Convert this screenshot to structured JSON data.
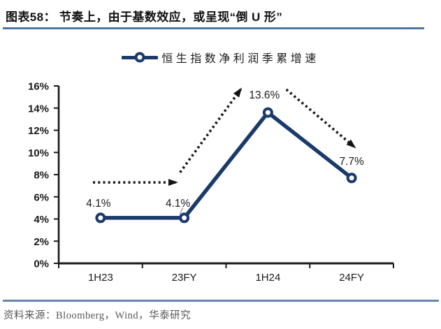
{
  "header": {
    "title": "图表58：  节奏上，由于基数效应，或呈现“倒 U 形”"
  },
  "legend": {
    "label": "恒生指数净利润季累增速"
  },
  "footer": {
    "source": "资料来源：Bloomberg，Wind，华泰研究"
  },
  "colors": {
    "series": "#1a3a6b",
    "axis": "#1a1a1a",
    "text": "#1a1a1a",
    "arrow": "#141414",
    "leader": "#a6a6a6",
    "title_rule": "#4f74a3",
    "footer_rule": "#6286ac",
    "source_text": "#595959"
  },
  "chart_data": {
    "type": "line",
    "title": "图表58：节奏上，由于基数效应，或呈现“倒U形”",
    "categories": [
      "1H23",
      "23FY",
      "1H24",
      "24FY"
    ],
    "series": [
      {
        "name": "恒生指数净利润季累增速",
        "values": [
          4.1,
          4.1,
          13.6,
          7.7
        ]
      }
    ],
    "data_labels": [
      "4.1%",
      "4.1%",
      "13.6%",
      "7.7%"
    ],
    "xlabel": "",
    "ylabel": "",
    "ylim": [
      0,
      16
    ],
    "ytick_step": 2,
    "ytick_labels": [
      "0%",
      "2%",
      "4%",
      "6%",
      "8%",
      "10%",
      "12%",
      "14%",
      "16%"
    ],
    "grid": false,
    "legend_position": "top",
    "annotations": [
      {
        "type": "dotted-arrow",
        "from": {
          "xi": 0.41,
          "y": 7.3
        },
        "to": {
          "xi": 1.41,
          "y": 7.3
        }
      },
      {
        "type": "dotted-arrow",
        "from": {
          "xi": 1.45,
          "y": 8.2
        },
        "to": {
          "xi": 2.18,
          "y": 15.75
        }
      },
      {
        "type": "dotted-arrow",
        "from": {
          "xi": 2.72,
          "y": 15.68
        },
        "to": {
          "xi": 3.54,
          "y": 10.45
        }
      }
    ]
  }
}
